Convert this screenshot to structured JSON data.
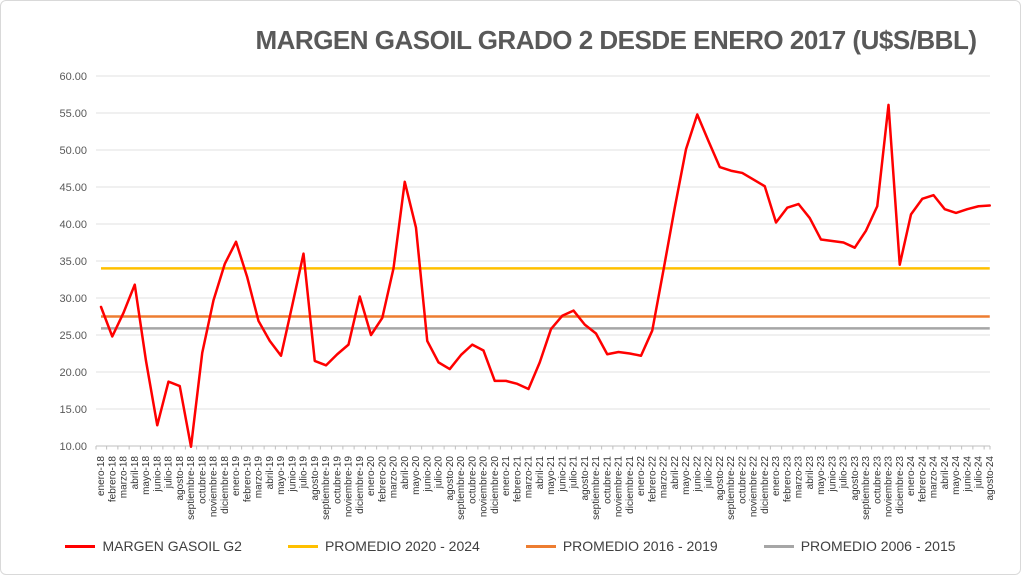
{
  "title": "MARGEN GASOIL GRADO 2 DESDE ENERO 2017 (U$S/BBL)",
  "legend": {
    "items": [
      {
        "label": "MARGEN GASOIL G2",
        "color": "#FF0000"
      },
      {
        "label": "PROMEDIO 2020 - 2024",
        "color": "#FFC000"
      },
      {
        "label": "PROMEDIO 2016 - 2019",
        "color": "#ED7D31"
      },
      {
        "label": "PROMEDIO 2006 - 2015",
        "color": "#A6A6A6"
      }
    ]
  },
  "chart_data": {
    "type": "line",
    "title": "MARGEN GASOIL GRADO 2 DESDE ENERO 2017 (U$S/BBL)",
    "xlabel": "",
    "ylabel": "",
    "ylim": [
      10,
      60
    ],
    "ytick_step": 5,
    "grid": true,
    "legend_position": "bottom",
    "x_labels": [
      "enero-18",
      "febrero-18",
      "marzo-18",
      "abril-18",
      "mayo-18",
      "junio-18",
      "julio-18",
      "agosto-18",
      "septiembre-18",
      "octubre-18",
      "noviembre-18",
      "diciembre-18",
      "enero-19",
      "febrero-19",
      "marzo-19",
      "abril-19",
      "mayo-19",
      "junio-19",
      "julio-19",
      "agosto-19",
      "septiembre-19",
      "octubre-19",
      "noviembre-19",
      "diciembre-19",
      "enero-20",
      "febrero-20",
      "marzo-20",
      "abril-20",
      "mayo-20",
      "junio-20",
      "julio-20",
      "agosto-20",
      "septiembre-20",
      "octubre-20",
      "noviembre-20",
      "diciembre-20",
      "enero-21",
      "febrero-21",
      "marzo-21",
      "abril-21",
      "mayo-21",
      "junio-21",
      "julio-21",
      "agosto-21",
      "septiembre-21",
      "octubre-21",
      "noviembre-21",
      "diciembre-21",
      "enero-22",
      "febrero-22",
      "marzo-22",
      "abril-22",
      "mayo-22",
      "junio-22",
      "julio-22",
      "agosto-22",
      "septiembre-22",
      "octubre-22",
      "noviembre-22",
      "diciembre-22",
      "enero-23",
      "febrero-23",
      "marzo-23",
      "abril-23",
      "mayo-23",
      "junio-23",
      "julio-23",
      "agosto-23",
      "septiembre-23",
      "octubre-23",
      "noviembre-23",
      "diciembre-23",
      "enero-24",
      "febrero-24",
      "marzo-24",
      "abril-24",
      "mayo-24",
      "junio-24",
      "julio-24",
      "agosto-24"
    ],
    "series": [
      {
        "name": "MARGEN GASOIL G2",
        "color": "#FF0000",
        "values": [
          28.8,
          24.8,
          28.0,
          31.8,
          21.5,
          12.8,
          18.7,
          18.1,
          9.9,
          22.6,
          29.7,
          34.6,
          37.6,
          32.8,
          26.9,
          24.2,
          22.2,
          29.0,
          36.0,
          21.5,
          20.9,
          22.4,
          23.7,
          30.2,
          25.0,
          27.3,
          34.0,
          45.7,
          39.5,
          24.2,
          21.3,
          20.4,
          22.3,
          23.7,
          22.9,
          18.8,
          18.8,
          18.4,
          17.7,
          21.3,
          25.8,
          27.6,
          28.3,
          26.4,
          25.2,
          22.4,
          22.7,
          22.5,
          22.2,
          25.6,
          33.8,
          42.2,
          50.1,
          54.8,
          51.2,
          47.7,
          47.2,
          46.9,
          46.0,
          45.1,
          40.2,
          42.2,
          42.7,
          40.8,
          37.9,
          37.7,
          37.5,
          36.8,
          39.1,
          42.4,
          56.1,
          34.5,
          41.3,
          43.4,
          43.9,
          42.0,
          41.5,
          42.0,
          42.4,
          42.5
        ]
      }
    ],
    "reference_lines": [
      {
        "name": "PROMEDIO 2020 - 2024",
        "value": 34.0,
        "color": "#FFC000"
      },
      {
        "name": "PROMEDIO 2016 - 2019",
        "value": 27.5,
        "color": "#ED7D31"
      },
      {
        "name": "PROMEDIO 2006 - 2015",
        "value": 25.9,
        "color": "#A6A6A6"
      }
    ],
    "style": {
      "grid_color": "#E2E2E2",
      "axis_color": "#BFBFBF",
      "ytick_color": "#595959",
      "xtick_color": "#333333",
      "title_color": "#595959"
    }
  }
}
